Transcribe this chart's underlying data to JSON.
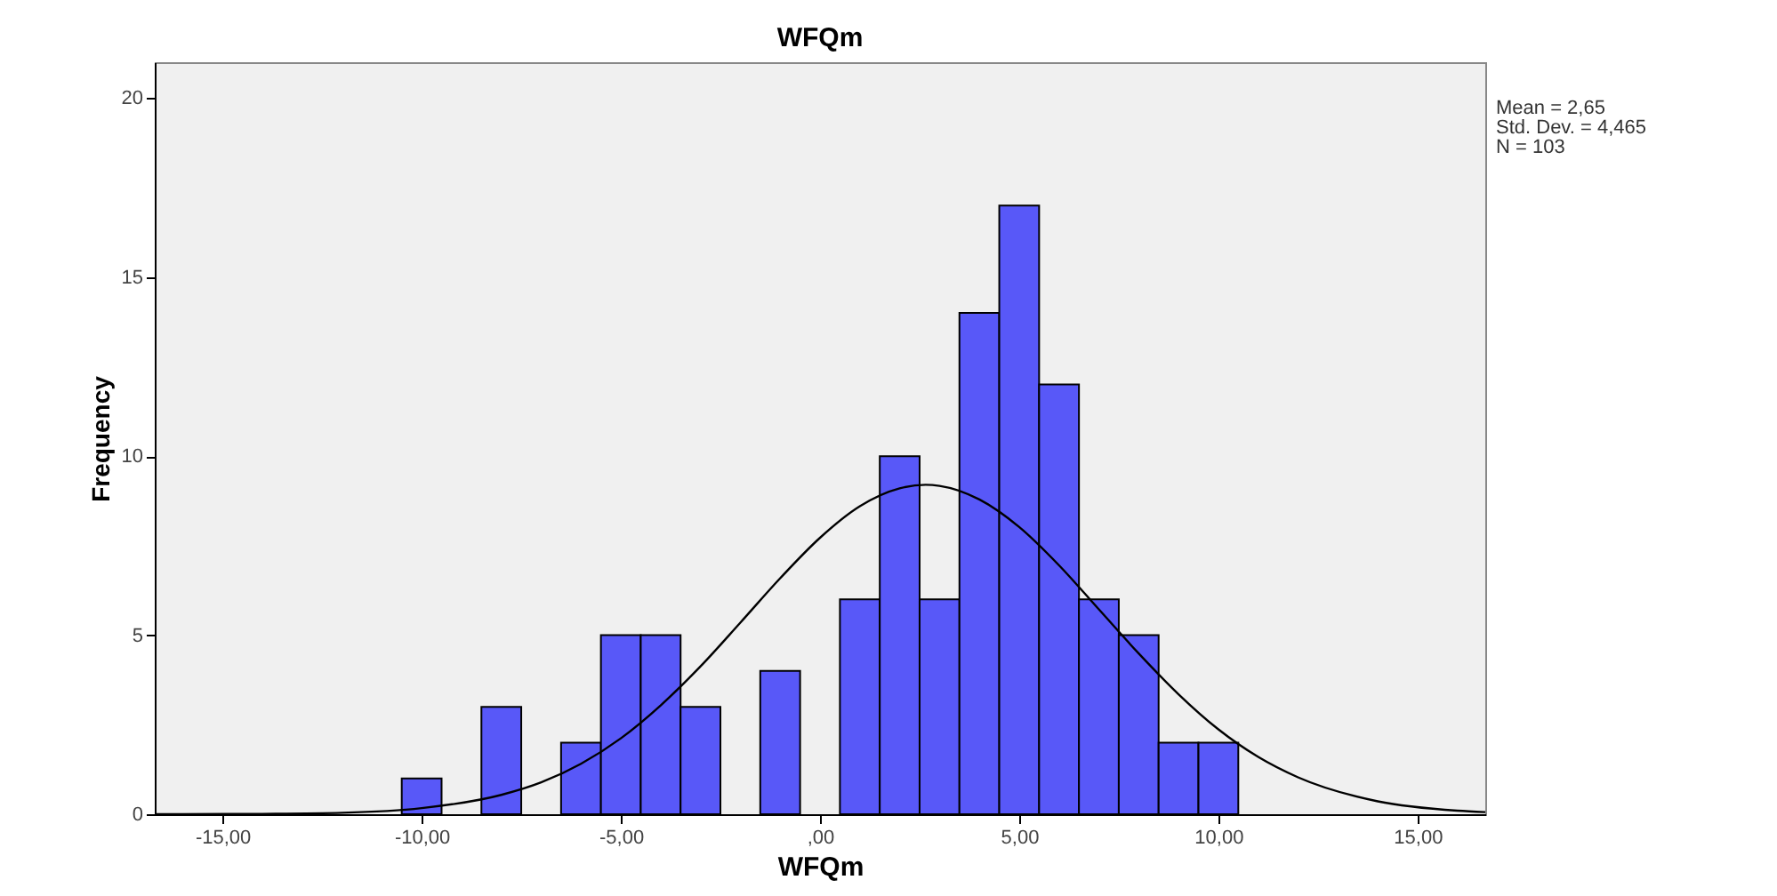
{
  "chart_data": {
    "type": "histogram",
    "title": "WFQm",
    "xlabel": "WFQm",
    "ylabel": "Frequency",
    "bins": [
      -10.5,
      -9.5,
      -8.5,
      -7.5,
      -6.5,
      -5.5,
      -4.5,
      -3.5,
      -2.5,
      -1.5,
      -0.5,
      0.5,
      1.5,
      2.5,
      3.5,
      4.5,
      5.5,
      6.5,
      7.5,
      8.5,
      9.5,
      10.5
    ],
    "values": [
      1,
      0,
      3,
      0,
      2,
      5,
      5,
      3,
      0,
      4,
      0,
      6,
      10,
      6,
      14,
      17,
      12,
      6,
      5,
      2,
      2
    ],
    "color": "#5858f8",
    "series": [
      {
        "type": "line",
        "color": "#000000",
        "x": [
          -16.7,
          -16,
          -14,
          -12,
          -10,
          -8,
          -7,
          -6,
          -5,
          -4,
          -3,
          -2,
          -1,
          0,
          1,
          2,
          2.65,
          3,
          4,
          5,
          6,
          7,
          8,
          9,
          10,
          11,
          12,
          14,
          16,
          16.7
        ],
        "values": [
          0,
          0,
          0.01,
          0.04,
          0.17,
          0.54,
          0.89,
          1.41,
          2.12,
          3.04,
          4.13,
          5.35,
          6.59,
          7.72,
          8.6,
          9.1,
          9.2,
          9.17,
          8.79,
          8.02,
          6.95,
          5.72,
          4.49,
          3.35,
          2.37,
          1.6,
          1.03,
          0.36,
          0.1,
          0.06
        ]
      }
    ],
    "xlim": [
      -16.7,
      16.7
    ],
    "ylim": [
      0,
      21
    ],
    "xticks": [
      {
        "value": -15,
        "label": "-15,00"
      },
      {
        "value": -10,
        "label": "-10,00"
      },
      {
        "value": -5,
        "label": "-5,00"
      },
      {
        "value": 0,
        "label": ",00"
      },
      {
        "value": 5,
        "label": "5,00"
      },
      {
        "value": 10,
        "label": "10,00"
      },
      {
        "value": 15,
        "label": "15,00"
      }
    ],
    "yticks": [
      0,
      5,
      10,
      15,
      20
    ],
    "grid": false,
    "annotations": [
      "Mean = 2,65",
      "Std. Dev. = 4,465",
      "N = 103"
    ]
  }
}
